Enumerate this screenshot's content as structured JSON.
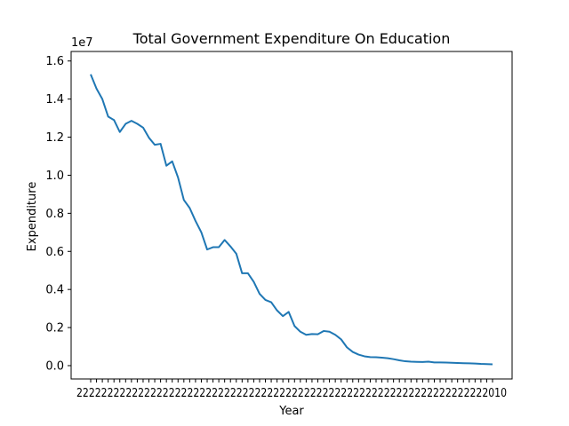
{
  "chart_data": {
    "type": "line",
    "title": "Total Government Expenditure On Education",
    "xlabel": "Year",
    "ylabel": "Expenditure",
    "y_offset_label": "1e7",
    "ylim": [
      -700000,
      16500000
    ],
    "y_ticks": [
      0,
      2000000,
      4000000,
      6000000,
      8000000,
      10000000,
      12000000,
      14000000,
      16000000
    ],
    "y_tick_labels": [
      "0.0",
      "0.2",
      "0.4",
      "0.6",
      "0.8",
      "1.0",
      "1.2",
      "1.4",
      "1.6"
    ],
    "x_tick_labels_overlapping": "2222222222222222222222222222222222222222222222222222222222222222222010",
    "line_color": "#1f77b4",
    "grid": false,
    "series": [
      {
        "values": [
          15300000,
          14550000,
          14000000,
          13080000,
          12900000,
          12270000,
          12700000,
          12860000,
          12700000,
          12500000,
          11970000,
          11600000,
          11650000,
          10500000,
          10730000,
          9880000,
          8700000,
          8280000,
          7600000,
          7000000,
          6100000,
          6220000,
          6220000,
          6600000,
          6260000,
          5880000,
          4850000,
          4850000,
          4400000,
          3770000,
          3450000,
          3330000,
          2900000,
          2600000,
          2820000,
          2080000,
          1780000,
          1620000,
          1660000,
          1650000,
          1820000,
          1780000,
          1620000,
          1380000,
          960000,
          720000,
          580000,
          490000,
          450000,
          440000,
          420000,
          390000,
          340000,
          280000,
          230000,
          210000,
          200000,
          190000,
          210000,
          170000,
          170000,
          160000,
          150000,
          140000,
          130000,
          120000,
          110000,
          90000,
          80000,
          70000
        ]
      }
    ]
  }
}
